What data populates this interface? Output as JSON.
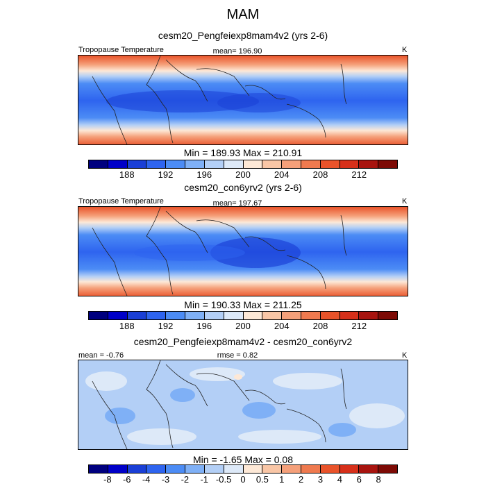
{
  "figure": {
    "title": "MAM"
  },
  "panels": [
    {
      "title": "cesm20_Pengfeiexp8mam4v2 (yrs 2-6)",
      "left_label": "Tropopause Temperature",
      "center_label": "mean= 196.90",
      "right_label": "K",
      "minmax": "Min = 189.93 Max = 210.91",
      "kind": "absolute"
    },
    {
      "title": "cesm20_con6yrv2 (yrs 2-6)",
      "left_label": "Tropopause Temperature",
      "center_label": "mean= 197.67",
      "right_label": "K",
      "minmax": "Min = 190.33 Max = 211.25",
      "kind": "absolute"
    },
    {
      "title": "cesm20_Pengfeiexp8mam4v2 - cesm20_con6yrv2",
      "left_label": "mean =  -0.76",
      "center_label": "rmse =   0.82",
      "right_label": "K",
      "minmax": "Min =  -1.65 Max =   0.08",
      "kind": "difference"
    }
  ],
  "colorbars": {
    "absolute": {
      "colors": [
        "#00007f",
        "#0000c8",
        "#1a3fd6",
        "#2e64ef",
        "#4c8cf5",
        "#7fb0f6",
        "#b3cff6",
        "#dde9f8",
        "#fde8d6",
        "#f9c6a6",
        "#f5a07a",
        "#ef7a4f",
        "#e9532a",
        "#d7301a",
        "#a8140f",
        "#7d0a05"
      ],
      "tick_labels": [
        "188",
        "192",
        "196",
        "200",
        "204",
        "208",
        "212"
      ]
    },
    "difference": {
      "colors": [
        "#00007f",
        "#0000c8",
        "#1a3fd6",
        "#2e64ef",
        "#4c8cf5",
        "#7fb0f6",
        "#b3cff6",
        "#dde9f8",
        "#fde8d6",
        "#f9c6a6",
        "#f5a07a",
        "#ef7a4f",
        "#e9532a",
        "#d7301a",
        "#a8140f",
        "#7d0a05"
      ],
      "tick_labels": [
        "-8",
        "-6",
        "-4",
        "-3",
        "-2",
        "-1",
        "-0.5",
        "0",
        "0.5",
        "1",
        "2",
        "3",
        "4",
        "6",
        "8"
      ]
    }
  }
}
